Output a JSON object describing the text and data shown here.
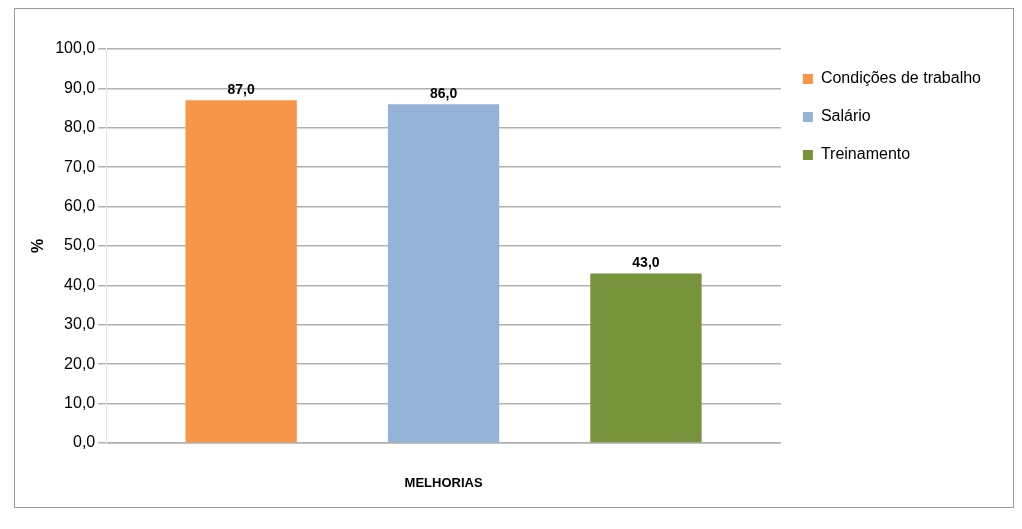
{
  "chart_data": {
    "type": "bar",
    "xlabel": "MELHORIAS",
    "ylabel": "%",
    "categories": [
      null
    ],
    "series": [
      {
        "name": "Condições de trabalho",
        "color": "#f79646",
        "values": [
          87.0
        ],
        "value_labels": [
          "87,0"
        ]
      },
      {
        "name": "Salário",
        "color": "#95b3d7",
        "values": [
          86.0
        ],
        "value_labels": [
          "86,0"
        ]
      },
      {
        "name": "Treinamento",
        "color": "#77933c",
        "values": [
          43.0
        ],
        "value_labels": [
          "43,0"
        ]
      }
    ],
    "ylim": [
      0,
      100
    ],
    "yticks": [
      {
        "value": 0,
        "label": "0,0"
      },
      {
        "value": 10,
        "label": "10,0"
      },
      {
        "value": 20,
        "label": "20,0"
      },
      {
        "value": 30,
        "label": "30,0"
      },
      {
        "value": 40,
        "label": "40,0"
      },
      {
        "value": 50,
        "label": "50,0"
      },
      {
        "value": 60,
        "label": "60,0"
      },
      {
        "value": 70,
        "label": "70,0"
      },
      {
        "value": 80,
        "label": "80,0"
      },
      {
        "value": 90,
        "label": "90,0"
      },
      {
        "value": 100,
        "label": "100,0"
      }
    ],
    "grid": "y",
    "legend": "top right"
  }
}
